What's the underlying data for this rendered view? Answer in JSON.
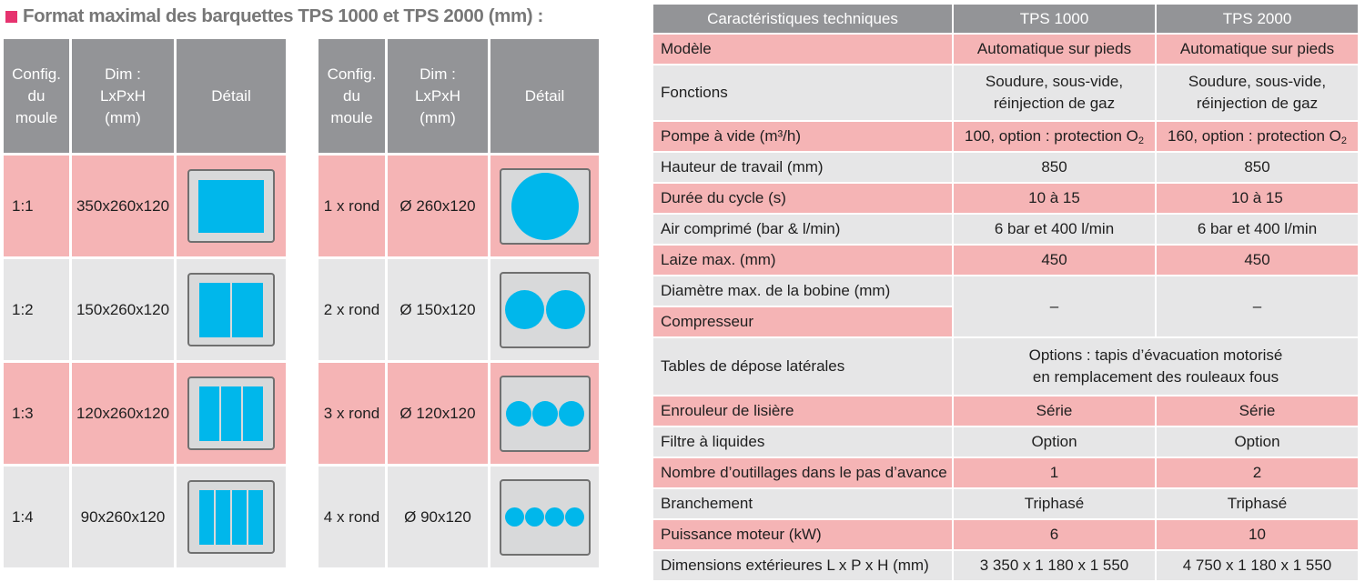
{
  "header": {
    "title": "Format maximal des barquettes TPS 1000 et TPS 2000 (mm) :"
  },
  "colors": {
    "accent_square": "#e6336f",
    "header_bg": "#939497",
    "row_pink": "#f5b4b5",
    "row_grey": "#e6e6e7",
    "cavity": "#00b7eb"
  },
  "moulds_left": {
    "headers": {
      "config": [
        "Config.",
        "du",
        "moule"
      ],
      "dim": [
        "Dim :",
        "LxPxH",
        "(mm)"
      ],
      "detail": "Détail"
    },
    "rows": [
      {
        "config": "1:1",
        "dim": "350x260x120",
        "icon": "single-rectangle-icon"
      },
      {
        "config": "1:2",
        "dim": "150x260x120",
        "icon": "two-rectangles-icon"
      },
      {
        "config": "1:3",
        "dim": "120x260x120",
        "icon": "three-rectangles-icon"
      },
      {
        "config": "1:4",
        "dim": "90x260x120",
        "icon": "four-rectangles-icon"
      }
    ]
  },
  "moulds_right": {
    "headers": {
      "config": [
        "Config.",
        "du",
        "moule"
      ],
      "dim": [
        "Dim :",
        "LxPxH",
        "(mm)"
      ],
      "detail": "Détail"
    },
    "rows": [
      {
        "config": "1 x rond",
        "dim": "Ø 260x120",
        "icon": "one-circle-icon"
      },
      {
        "config": "2 x rond",
        "dim": "Ø 150x120",
        "icon": "two-circles-icon"
      },
      {
        "config": "3 x rond",
        "dim": "Ø 120x120",
        "icon": "three-circles-icon"
      },
      {
        "config": "4 x rond",
        "dim": "Ø 90x120",
        "icon": "four-circles-icon"
      }
    ]
  },
  "specs": {
    "headers": [
      "Caractéristiques techniques",
      "TPS 1000",
      "TPS 2000"
    ],
    "rows": [
      {
        "label": "Modèle",
        "v1": "Automatique sur pieds",
        "v2": "Automatique sur pieds"
      },
      {
        "label": "Fonctions",
        "v1": [
          "Soudure, sous-vide,",
          "réinjection de gaz"
        ],
        "v2": [
          "Soudure, sous-vide,",
          "réinjection de gaz"
        ]
      },
      {
        "label": "Pompe à vide (m³/h)",
        "v1": "100, option : protection O",
        "v2": "160, option : protection O",
        "sub": "2"
      },
      {
        "label": "Hauteur de travail (mm)",
        "v1": "850",
        "v2": "850"
      },
      {
        "label": "Durée du cycle (s)",
        "v1": "10 à 15",
        "v2": "10 à 15"
      },
      {
        "label": "Air comprimé (bar & l/min)",
        "v1": "6 bar et 400 l/min",
        "v2": "6 bar et 400 l/min"
      },
      {
        "label": "Laize max. (mm)",
        "v1": "450",
        "v2": "450"
      },
      {
        "label": "Diamètre max. de la bobine (mm)",
        "v1": "–",
        "v2": "–"
      },
      {
        "label": "Compresseur"
      },
      {
        "label": "Tables de dépose latérales",
        "merged": [
          "Options : tapis d’évacuation motorisé",
          "en remplacement des rouleaux fous"
        ]
      },
      {
        "label": "Enrouleur de lisière",
        "v1": "Série",
        "v2": "Série"
      },
      {
        "label": "Filtre à liquides",
        "v1": "Option",
        "v2": "Option"
      },
      {
        "label": "Nombre d’outillages dans le pas d’avance",
        "v1": "1",
        "v2": "2"
      },
      {
        "label": "Branchement",
        "v1": "Triphasé",
        "v2": "Triphasé"
      },
      {
        "label": "Puissance moteur (kW)",
        "v1": "6",
        "v2": "10"
      },
      {
        "label": "Dimensions extérieures L x P x H (mm)",
        "v1": "3 350 x 1 180 x 1 550",
        "v2": "4 750 x 1 180 x 1 550"
      }
    ]
  }
}
